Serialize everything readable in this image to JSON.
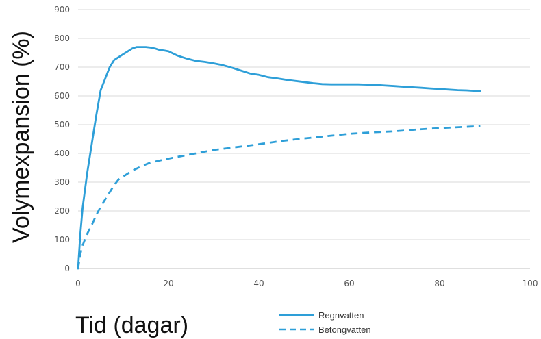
{
  "chart_data": {
    "type": "line",
    "title": "",
    "xlabel": "Tid (dagar)",
    "ylabel": "Volymexpansion (%)",
    "xlim": [
      0,
      100
    ],
    "ylim": [
      0,
      900
    ],
    "x_ticks": [
      0,
      20,
      40,
      60,
      80,
      100
    ],
    "y_ticks": [
      0,
      100,
      200,
      300,
      400,
      500,
      600,
      700,
      800,
      900
    ],
    "grid": "horizontal",
    "legend_position": "bottom-center",
    "series": [
      {
        "name": "Regnvatten",
        "style": "solid",
        "color": "#2e9fd8",
        "x": [
          0,
          0.5,
          1,
          2,
          3,
          4,
          5,
          6,
          7,
          8,
          9,
          10,
          11,
          12,
          13,
          14,
          15,
          16,
          17,
          18,
          19,
          20,
          22,
          24,
          26,
          28,
          30,
          32,
          34,
          36,
          38,
          40,
          42,
          44,
          46,
          48,
          50,
          52,
          54,
          56,
          58,
          60,
          62,
          64,
          66,
          68,
          70,
          72,
          74,
          76,
          78,
          80,
          82,
          84,
          86,
          88,
          89
        ],
        "y": [
          0,
          120,
          210,
          330,
          430,
          530,
          620,
          660,
          700,
          725,
          735,
          745,
          755,
          765,
          770,
          770,
          770,
          768,
          765,
          760,
          758,
          755,
          740,
          730,
          722,
          718,
          713,
          707,
          698,
          688,
          678,
          673,
          665,
          661,
          656,
          652,
          648,
          644,
          641,
          640,
          640,
          640,
          640,
          639,
          638,
          636,
          634,
          632,
          630,
          628,
          626,
          624,
          622,
          620,
          619,
          617,
          617
        ]
      },
      {
        "name": "Betongvatten",
        "style": "dashed",
        "color": "#2e9fd8",
        "x": [
          0,
          0.5,
          1,
          2,
          3,
          4,
          5,
          6,
          7,
          8,
          9,
          10,
          12,
          14,
          16,
          18,
          20,
          22,
          25,
          30,
          35,
          40,
          45,
          50,
          55,
          60,
          65,
          70,
          75,
          80,
          85,
          89
        ],
        "y": [
          0,
          50,
          80,
          120,
          150,
          185,
          215,
          240,
          265,
          290,
          310,
          320,
          340,
          355,
          368,
          375,
          382,
          388,
          397,
          412,
          422,
          432,
          443,
          452,
          460,
          468,
          473,
          477,
          483,
          488,
          492,
          495
        ]
      }
    ]
  }
}
